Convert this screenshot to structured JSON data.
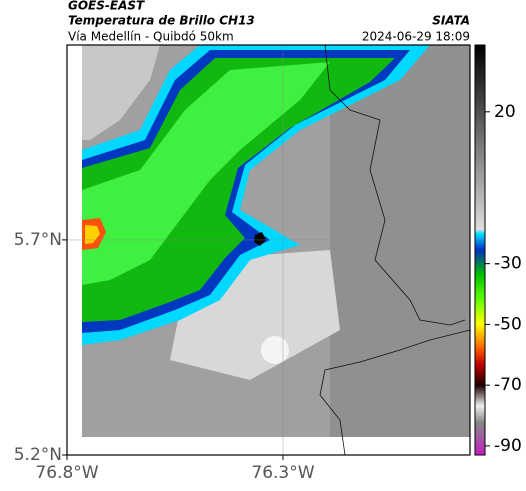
{
  "header": {
    "satellite": "GOES-EAST",
    "product": "Temperatura de Brillo CH13",
    "source": "SIATA",
    "route": "Vía Medellín - Quibdó 50km",
    "timestamp": "2024-06-29 18:09"
  },
  "map": {
    "xlim": [
      -76.8,
      -75.867
    ],
    "ylim": [
      5.2,
      6.153
    ],
    "xticks": [
      {
        "value": -76.8,
        "label": "76.8°W"
      },
      {
        "value": -76.3,
        "label": "76.3°W"
      }
    ],
    "yticks": [
      {
        "value": 5.2,
        "label": "5.2°N"
      },
      {
        "value": 5.7,
        "label": "5.7°N"
      }
    ],
    "grid": true
  },
  "colorbar": {
    "lim": [
      -93,
      42
    ],
    "ticks": [
      20,
      -30,
      -50,
      -70,
      -90
    ]
  }
}
